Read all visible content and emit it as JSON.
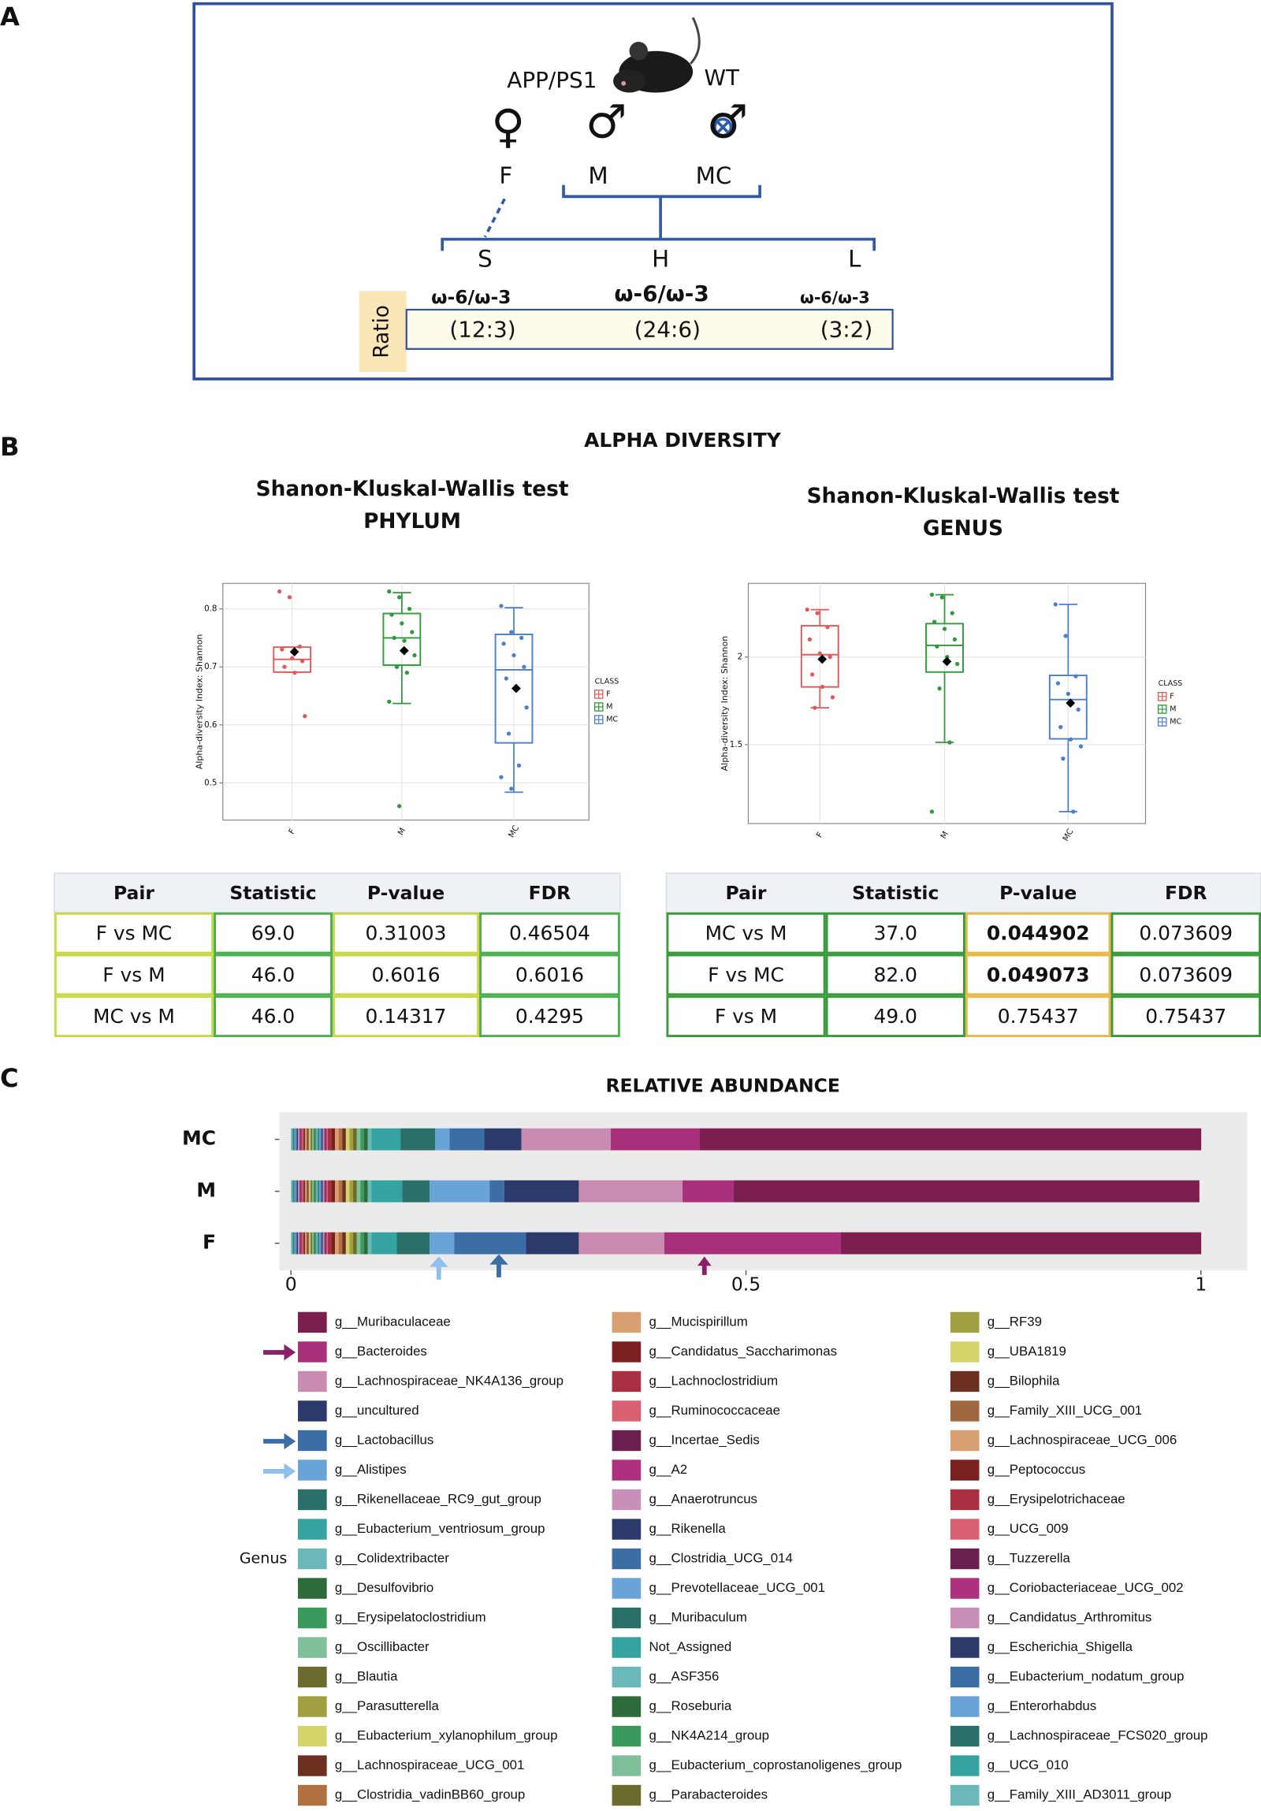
{
  "panel_labels": [
    "A",
    "B",
    "C"
  ],
  "diagram": {
    "strain": "APP/PS1",
    "control": "WT",
    "symbols": [
      "♀",
      "♂",
      "♂"
    ],
    "sexes": [
      "F",
      "M",
      "MC"
    ],
    "diets": [
      "S",
      "H",
      "L"
    ],
    "ratio_label": "Ratio",
    "ratio_names": [
      "ω-6/ω-3",
      "ω-6/ω-3",
      "ω-6/ω-3"
    ],
    "ratios": [
      "(12:3)",
      "(24:6)",
      "(3:2)"
    ]
  },
  "section_b_title": "ALPHA DIVERSITY",
  "chart_data": [
    {
      "type": "box",
      "title": "Shanon-Kluskal-Wallis test",
      "subtitle": "PHYLUM",
      "y_label": "Alpha-diversity Index: Shannon",
      "legend_title": "CLASS",
      "categories": [
        "F",
        "M",
        "MC"
      ],
      "ylim": [
        0.436,
        0.844
      ],
      "yticks": [
        0.5,
        0.6,
        0.7,
        0.8
      ],
      "grid": true,
      "boxes": [
        {
          "name": "F",
          "color": "#e05a5a",
          "whisker_low": 0.691,
          "q1": 0.691,
          "median": 0.713,
          "q3": 0.734,
          "whisker_high": 0.734,
          "mean": 0.726,
          "points": [
            0.83,
            0.82,
            0.735,
            0.73,
            0.715,
            0.71,
            0.7,
            0.69,
            0.615
          ]
        },
        {
          "name": "M",
          "color": "#2e9a3a",
          "whisker_low": 0.637,
          "q1": 0.703,
          "median": 0.75,
          "q3": 0.792,
          "whisker_high": 0.828,
          "mean": 0.728,
          "points": [
            0.83,
            0.82,
            0.8,
            0.79,
            0.775,
            0.76,
            0.75,
            0.745,
            0.72,
            0.7,
            0.69,
            0.64,
            0.46
          ]
        },
        {
          "name": "MC",
          "color": "#4a7fd0",
          "whisker_low": 0.484,
          "q1": 0.569,
          "median": 0.695,
          "q3": 0.756,
          "whisker_high": 0.802,
          "mean": 0.663,
          "points": [
            0.805,
            0.76,
            0.75,
            0.74,
            0.72,
            0.7,
            0.68,
            0.66,
            0.63,
            0.585,
            0.53,
            0.51,
            0.49
          ]
        }
      ]
    },
    {
      "type": "box",
      "title": "Shanon-Kluskal-Wallis test",
      "subtitle": "GENUS",
      "y_label": "Alpha-diversity Index: Shannon",
      "legend_title": "CLASS",
      "categories": [
        "F",
        "M",
        "MC"
      ],
      "ylim": [
        1.05,
        2.42
      ],
      "yticks": [
        1.5,
        2.0
      ],
      "grid": true,
      "boxes": [
        {
          "name": "F",
          "color": "#e05a5a",
          "whisker_low": 1.71,
          "q1": 1.829,
          "median": 2.013,
          "q3": 2.178,
          "whisker_high": 2.27,
          "mean": 1.987,
          "points": [
            2.27,
            2.25,
            2.17,
            2.1,
            2.02,
            2.0,
            1.9,
            1.83,
            1.77,
            1.71
          ]
        },
        {
          "name": "M",
          "color": "#2e9a3a",
          "whisker_low": 1.513,
          "q1": 1.914,
          "median": 2.066,
          "q3": 2.19,
          "whisker_high": 2.355,
          "mean": 1.974,
          "points": [
            2.355,
            2.34,
            2.25,
            2.2,
            2.16,
            2.1,
            2.06,
            2.0,
            1.96,
            1.82,
            1.513,
            1.118
          ]
        },
        {
          "name": "MC",
          "color": "#4a7fd0",
          "whisker_low": 1.118,
          "q1": 1.533,
          "median": 1.757,
          "q3": 1.895,
          "whisker_high": 2.3,
          "mean": 1.737,
          "points": [
            2.3,
            2.12,
            1.89,
            1.85,
            1.79,
            1.7,
            1.6,
            1.53,
            1.49,
            1.42,
            1.118
          ]
        }
      ]
    },
    {
      "type": "stacked_barh",
      "title": "RELATIVE ABUNDANCE",
      "legend_title": "Genus",
      "categories": [
        "MC",
        "M",
        "F"
      ],
      "xlim": [
        0,
        1
      ],
      "xticks": [
        0,
        0.5,
        1
      ],
      "series": [
        {
          "name": "g__Muribaculaceae",
          "color": "#7b1f4e",
          "values": [
            0.551,
            0.512,
            0.396
          ]
        },
        {
          "name": "g__Bacteroides",
          "color": "#a8307a",
          "values": [
            0.098,
            0.056,
            0.194
          ]
        },
        {
          "name": "g__Lachnospiraceae_NK4A136_group",
          "color": "#c98bb0",
          "values": [
            0.098,
            0.114,
            0.094
          ]
        },
        {
          "name": "g__uncultured",
          "color": "#2b3a6b",
          "values": [
            0.041,
            0.082,
            0.058
          ]
        },
        {
          "name": "g__Lactobacillus",
          "color": "#3a6ea5",
          "values": [
            0.038,
            0.016,
            0.079
          ]
        },
        {
          "name": "g__Alistipes",
          "color": "#6aa3d8",
          "values": [
            0.016,
            0.066,
            0.027
          ]
        },
        {
          "name": "g__Rikenellaceae_RC9_gut_group",
          "color": "#2a7068",
          "values": [
            0.038,
            0.03,
            0.036
          ]
        },
        {
          "name": "g__Eubacterium_ventriosum_group",
          "color": "#35a3a0",
          "values": [
            0.032,
            0.034,
            0.028
          ]
        },
        {
          "name": "g__Colidextribacter",
          "color": "#6bb8b8",
          "values": [
            0.004,
            0.004,
            0.004
          ]
        },
        {
          "name": "g__Desulfovibrio",
          "color": "#2e6b3a",
          "values": [
            0.004,
            0.004,
            0.004
          ]
        },
        {
          "name": "g__Erysipelatoclostridium",
          "color": "#3a9a5e",
          "values": [
            0.004,
            0.004,
            0.004
          ]
        },
        {
          "name": "g__Oscillibacter",
          "color": "#7fbf9a",
          "values": [
            0.004,
            0.004,
            0.004
          ]
        },
        {
          "name": "g__Blautia",
          "color": "#6b6b2e",
          "values": [
            0.004,
            0.004,
            0.004
          ]
        },
        {
          "name": "g__Parasutterella",
          "color": "#a0a040",
          "values": [
            0.004,
            0.004,
            0.004
          ]
        },
        {
          "name": "g__Eubacterium_xylanophilum_group",
          "color": "#d4d46a",
          "values": [
            0.004,
            0.004,
            0.004
          ]
        },
        {
          "name": "g__Lachnospiraceae_UCG_001",
          "color": "#6b3020",
          "values": [
            0.004,
            0.004,
            0.004
          ]
        },
        {
          "name": "g__Clostridia_vadinBB60_group",
          "color": "#b07040",
          "values": [
            0.004,
            0.004,
            0.004
          ]
        },
        {
          "name": "g__Mucispirillum",
          "color": "#d8a070",
          "values": [
            0.004,
            0.004,
            0.004
          ]
        },
        {
          "name": "g__Candidatus_Saccharimonas",
          "color": "#7a2020",
          "values": [
            0.004,
            0.004,
            0.004
          ]
        },
        {
          "name": "g__Lachnoclostridium",
          "color": "#a83040",
          "values": [
            0.004,
            0.004,
            0.004
          ]
        },
        {
          "name": "g__Ruminococcaceae",
          "color": "#d86070",
          "values": [
            0.0013,
            0.0013,
            0.0013
          ]
        },
        {
          "name": "g__Incertae_Sedis",
          "color": "#6b1f4e",
          "values": [
            0.0013,
            0.0013,
            0.0013
          ]
        },
        {
          "name": "g__A2",
          "color": "#b03080",
          "values": [
            0.0013,
            0.0013,
            0.0013
          ]
        },
        {
          "name": "g__Anaerotruncus",
          "color": "#c890b8",
          "values": [
            0.0013,
            0.0013,
            0.0013
          ]
        },
        {
          "name": "g__Rikenella",
          "color": "#2b3a6b",
          "values": [
            0.0013,
            0.0013,
            0.0013
          ]
        },
        {
          "name": "g__Clostridia_UCG_014",
          "color": "#3a6ea5",
          "values": [
            0.0013,
            0.0013,
            0.0013
          ]
        },
        {
          "name": "g__Prevotellaceae_UCG_001",
          "color": "#6aa3d8",
          "values": [
            0.0013,
            0.0013,
            0.0013
          ]
        },
        {
          "name": "g__Muribaculum",
          "color": "#2a7068",
          "values": [
            0.0013,
            0.0013,
            0.0013
          ]
        },
        {
          "name": "Not_Assigned",
          "color": "#35a3a0",
          "values": [
            0.0013,
            0.0013,
            0.0013
          ]
        },
        {
          "name": "g__ASF356",
          "color": "#6bb8b8",
          "values": [
            0.0013,
            0.0013,
            0.0013
          ]
        },
        {
          "name": "g__Roseburia",
          "color": "#2e6b3a",
          "values": [
            0.0013,
            0.0013,
            0.0013
          ]
        },
        {
          "name": "g__NK4A214_group",
          "color": "#3a9a5e",
          "values": [
            0.0013,
            0.0013,
            0.0013
          ]
        },
        {
          "name": "g__Eubacterium_coprostanoligenes_group",
          "color": "#7fbf9a",
          "values": [
            0.0013,
            0.0013,
            0.0013
          ]
        },
        {
          "name": "g__Parabacteroides",
          "color": "#6b6b2e",
          "values": [
            0.0013,
            0.0013,
            0.0013
          ]
        },
        {
          "name": "g__RF39",
          "color": "#a0a040",
          "values": [
            0.0013,
            0.0013,
            0.0013
          ]
        },
        {
          "name": "g__UBA1819",
          "color": "#d4d46a",
          "values": [
            0.0013,
            0.0013,
            0.0013
          ]
        },
        {
          "name": "g__Bilophila",
          "color": "#6b3020",
          "values": [
            0.0013,
            0.0013,
            0.0013
          ]
        },
        {
          "name": "g__Family_XIII_UCG_001",
          "color": "#a06840",
          "values": [
            0.0013,
            0.0013,
            0.0013
          ]
        },
        {
          "name": "g__Lachnospiraceae_UCG_006",
          "color": "#d8a070",
          "values": [
            0.0013,
            0.0013,
            0.0013
          ]
        },
        {
          "name": "g__Peptococcus",
          "color": "#7a2020",
          "values": [
            0.0013,
            0.0013,
            0.0013
          ]
        },
        {
          "name": "g__Erysipelotrichaceae",
          "color": "#a83040",
          "values": [
            0.0013,
            0.0013,
            0.0013
          ]
        },
        {
          "name": "g__UCG_009",
          "color": "#d86070",
          "values": [
            0.0013,
            0.0013,
            0.0013
          ]
        },
        {
          "name": "g__Tuzzerella",
          "color": "#6b1f4e",
          "values": [
            0.0013,
            0.0013,
            0.0013
          ]
        },
        {
          "name": "g__Coriobacteriaceae_UCG_002",
          "color": "#b03080",
          "values": [
            0.0013,
            0.0013,
            0.0013
          ]
        },
        {
          "name": "g__Candidatus_Arthromitus",
          "color": "#c890b8",
          "values": [
            0.0013,
            0.0013,
            0.0013
          ]
        },
        {
          "name": "g__Escherichia_Shigella",
          "color": "#2b3a6b",
          "values": [
            0.0013,
            0.0013,
            0.0013
          ]
        },
        {
          "name": "g__Eubacterium_nodatum_group",
          "color": "#3a6ea5",
          "values": [
            0.0013,
            0.0013,
            0.0013
          ]
        },
        {
          "name": "g__Enterorhabdus",
          "color": "#6aa3d8",
          "values": [
            0.0013,
            0.0013,
            0.0013
          ]
        },
        {
          "name": "g__Lachnospiraceae_FCS020_group",
          "color": "#2a7068",
          "values": [
            0.0013,
            0.0013,
            0.0013
          ]
        },
        {
          "name": "g__UCG_010",
          "color": "#35a3a0",
          "values": [
            0.0013,
            0.0013,
            0.0013
          ]
        },
        {
          "name": "g__Family_XIII_AD3011_group",
          "color": "#6bb8b8",
          "values": [
            0.0013,
            0.0013,
            0.0013
          ]
        }
      ]
    }
  ],
  "tables": [
    {
      "headers": [
        "Pair",
        "Statistic",
        "P-value",
        "FDR"
      ],
      "rows": [
        [
          "F vs MC",
          "69.0",
          "0.31003",
          "0.46504"
        ],
        [
          "F vs M",
          "46.0",
          "0.6016",
          "0.6016"
        ],
        [
          "MC vs M",
          "46.0",
          "0.14317",
          "0.4295"
        ]
      ]
    },
    {
      "headers": [
        "Pair",
        "Statistic",
        "P-value",
        "FDR"
      ],
      "rows": [
        [
          "MC vs M",
          "37.0",
          "0.044902",
          "0.073609"
        ],
        [
          "F vs MC",
          "82.0",
          "0.049073",
          "0.073609"
        ],
        [
          "F vs M",
          "49.0",
          "0.75437",
          "0.75437"
        ]
      ]
    }
  ]
}
